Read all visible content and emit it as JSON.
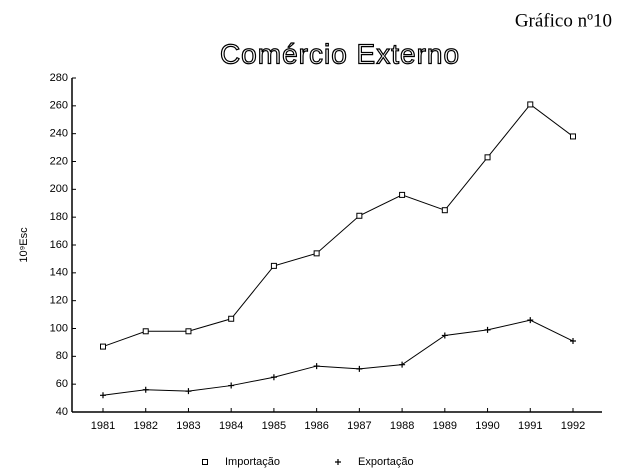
{
  "header": "Gráfico nº10",
  "chart_data": {
    "type": "line",
    "title": "Comércio Externo",
    "ylabel": "10⁹Esc",
    "categories": [
      "1981",
      "1982",
      "1983",
      "1984",
      "1985",
      "1986",
      "1987",
      "1988",
      "1989",
      "1990",
      "1991",
      "1992"
    ],
    "series": [
      {
        "name": "Importação",
        "color": "#000000",
        "marker": "square",
        "values": [
          87,
          98,
          98,
          107,
          145,
          154,
          181,
          196,
          185,
          223,
          261,
          238
        ]
      },
      {
        "name": "Exportação",
        "color": "#000000",
        "marker": "plus",
        "values": [
          52,
          56,
          55,
          59,
          65,
          73,
          71,
          74,
          95,
          99,
          106,
          91
        ]
      }
    ],
    "ylim": [
      40,
      280
    ],
    "yticks": [
      40,
      60,
      80,
      100,
      120,
      140,
      160,
      180,
      200,
      220,
      240,
      260,
      280
    ],
    "grid": false,
    "legend": "bottom"
  }
}
